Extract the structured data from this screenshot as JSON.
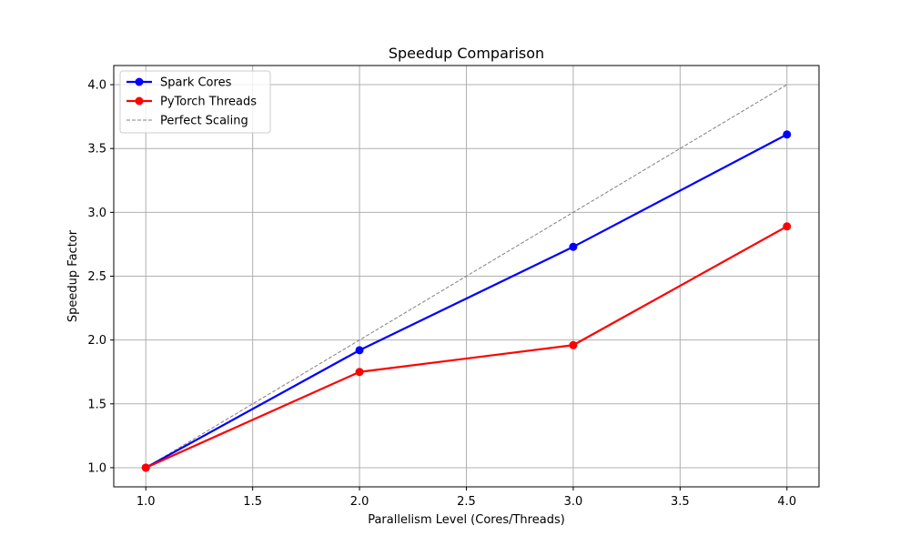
{
  "chart_data": {
    "type": "line",
    "title": "Speedup Comparison",
    "xlabel": "Parallelism Level (Cores/Threads)",
    "ylabel": "Speedup Factor",
    "x": [
      1.0,
      2.0,
      3.0,
      4.0
    ],
    "xlim": [
      0.85,
      4.15
    ],
    "ylim": [
      0.85,
      4.15
    ],
    "xticks": [
      1.0,
      1.5,
      2.0,
      2.5,
      3.0,
      3.5,
      4.0
    ],
    "xtick_labels": [
      "1.0",
      "1.5",
      "2.0",
      "2.5",
      "3.0",
      "3.5",
      "4.0"
    ],
    "yticks": [
      1.0,
      1.5,
      2.0,
      2.5,
      3.0,
      3.5,
      4.0
    ],
    "ytick_labels": [
      "1.0",
      "1.5",
      "2.0",
      "2.5",
      "3.0",
      "3.5",
      "4.0"
    ],
    "grid": true,
    "legend_position": "top-left",
    "series": [
      {
        "name": "Spark Cores",
        "values": [
          1.0,
          1.92,
          2.73,
          3.61
        ],
        "color": "#0000ff",
        "style": "solid",
        "marker": "circle"
      },
      {
        "name": "PyTorch Threads",
        "values": [
          1.0,
          1.75,
          1.96,
          2.89
        ],
        "color": "#ff0000",
        "style": "solid",
        "marker": "circle"
      },
      {
        "name": "Perfect Scaling",
        "values": [
          1.0,
          2.0,
          3.0,
          4.0
        ],
        "color": "#808080",
        "style": "dashed",
        "marker": "none"
      }
    ]
  }
}
